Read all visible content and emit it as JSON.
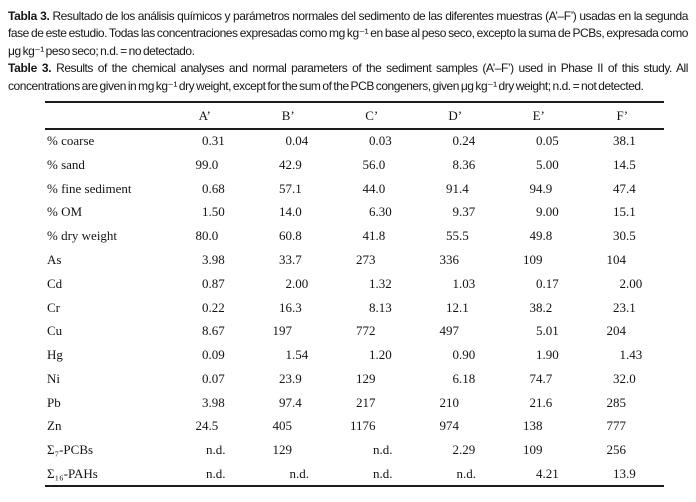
{
  "caption": {
    "spanish": {
      "label": "Tabla 3.",
      "text": "Resultado de los análisis químicos y parámetros normales del sedimento de las diferentes muestras (A’–F’) usadas en la segunda fase de este estudio. Todas las concentraciones expresadas como mg kg⁻¹ en base al peso seco, excepto la suma de PCBs, expresada como μg kg⁻¹ peso seco; n.d. = no detectado."
    },
    "english": {
      "label": "Table 3.",
      "text": "Results of the chemical analyses and normal parameters of the sediment samples (A’–F’) used in Phase II of this study. All concentrations are given in mg kg⁻¹ dry weight, except for the sum of the PCB congeners, given μg kg⁻¹ dry weight; n.d. = not detected."
    }
  },
  "table": {
    "type": "table",
    "not_detected_symbol": "n.d.",
    "column_headers": [
      "A’",
      "B’",
      "C’",
      "D’",
      "E’",
      "F’"
    ],
    "rows": [
      {
        "label": "% coarse",
        "values": [
          "0.31",
          "0.04",
          "0.03",
          "0.24",
          "0.05",
          "38.1"
        ]
      },
      {
        "label": "% sand",
        "values": [
          "99.0",
          "42.9",
          "56.0",
          "8.36",
          "5.00",
          "14.5"
        ]
      },
      {
        "label": "% fine sediment",
        "values": [
          "0.68",
          "57.1",
          "44.0",
          "91.4",
          "94.9",
          "47.4"
        ]
      },
      {
        "label": "% OM",
        "values": [
          "1.50",
          "14.0",
          "6.30",
          "9.37",
          "9.00",
          "15.1"
        ]
      },
      {
        "label": "% dry weight",
        "values": [
          "80.0",
          "60.8",
          "41.8",
          "55.5",
          "49.8",
          "30.5"
        ]
      },
      {
        "label": "As",
        "values": [
          "3.98",
          "33.7",
          "273",
          "336",
          "109",
          "104"
        ]
      },
      {
        "label": "Cd",
        "values": [
          "0.87",
          "2.00",
          "1.32",
          "1.03",
          "0.17",
          "2.00"
        ]
      },
      {
        "label": "Cr",
        "values": [
          "0.22",
          "16.3",
          "8.13",
          "12.1",
          "38.2",
          "23.1"
        ]
      },
      {
        "label": "Cu",
        "values": [
          "8.67",
          "197",
          "772",
          "497",
          "5.01",
          "204"
        ]
      },
      {
        "label": "Hg",
        "values": [
          "0.09",
          "1.54",
          "1.20",
          "0.90",
          "1.90",
          "1.43"
        ]
      },
      {
        "label": "Ni",
        "values": [
          "0.07",
          "23.9",
          "129",
          "6.18",
          "74.7",
          "32.0"
        ]
      },
      {
        "label": "Pb",
        "values": [
          "3.98",
          "97.4",
          "217",
          "210",
          "21.6",
          "285"
        ]
      },
      {
        "label": "Zn",
        "values": [
          "24.5",
          "405",
          "1176",
          "974",
          "138",
          "777"
        ]
      },
      {
        "label": "Σ₇-PCBs",
        "values": [
          "n.d.",
          "129",
          "n.d.",
          "2.29",
          "109",
          "256"
        ]
      },
      {
        "label": "Σ₁₆-PAHs",
        "values": [
          "n.d.",
          "n.d.",
          "n.d.",
          "n.d.",
          "4.21",
          "13.9"
        ]
      }
    ]
  }
}
